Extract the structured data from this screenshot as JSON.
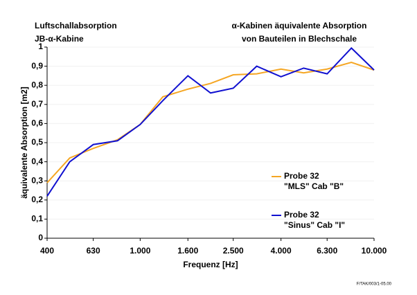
{
  "chart_data": {
    "type": "line",
    "title_left": [
      "Luftschallabsorption",
      "JB-α-Kabine"
    ],
    "title_right": [
      "α-Kabinen äquivalente Absorption",
      "von Bauteilen in Blechschale"
    ],
    "ylabel": "äquivalente Absorption [m2]",
    "xlabel": "Frequenz [Hz]",
    "footnote": "F/TAK/003/1-05.00",
    "xscale": "log",
    "x": [
      400,
      500,
      630,
      800,
      1000,
      1250,
      1600,
      2000,
      2500,
      3150,
      4000,
      5000,
      6300,
      8000,
      10000
    ],
    "series": [
      {
        "name": "Probe 32\n\"MLS\" Cab \"B\"",
        "color": "#f5a623",
        "values": [
          0.29,
          0.42,
          0.47,
          0.515,
          0.595,
          0.74,
          0.78,
          0.81,
          0.855,
          0.86,
          0.885,
          0.865,
          0.885,
          0.92,
          0.88
        ]
      },
      {
        "name": "Probe 32\n\"Sinus\" Cab \"I\"",
        "color": "#1010d0",
        "values": [
          0.22,
          0.4,
          0.49,
          0.51,
          0.595,
          0.72,
          0.85,
          0.76,
          0.785,
          0.9,
          0.845,
          0.89,
          0.86,
          0.995,
          0.88
        ]
      }
    ],
    "xlim": [
      400,
      10000
    ],
    "xticks": [
      400,
      630,
      {
        "value": 1000,
        "label": "1.000"
      },
      {
        "value": 1600,
        "label": "1.600"
      },
      {
        "value": 2500,
        "label": "2.500"
      },
      {
        "value": 4000,
        "label": "4.000"
      },
      {
        "value": 6300,
        "label": "6.300"
      },
      {
        "value": 10000,
        "label": "10.000"
      }
    ],
    "ylim": [
      0,
      1
    ],
    "yticks": [
      0,
      {
        "value": 0.1,
        "label": "0,1"
      },
      {
        "value": 0.2,
        "label": "0,2"
      },
      {
        "value": 0.3,
        "label": "0,3"
      },
      {
        "value": 0.4,
        "label": "0,4"
      },
      {
        "value": 0.5,
        "label": "0,5"
      },
      {
        "value": 0.6,
        "label": "0,6"
      },
      {
        "value": 0.7,
        "label": "0,7"
      },
      {
        "value": 0.8,
        "label": "0,8"
      },
      {
        "value": 0.9,
        "label": "0,9"
      },
      1
    ],
    "grid": true
  }
}
